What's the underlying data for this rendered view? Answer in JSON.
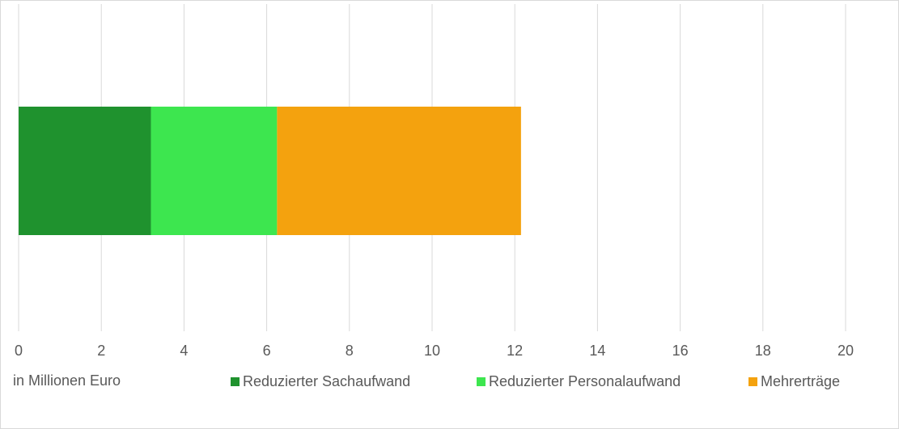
{
  "chart_data": {
    "type": "bar",
    "orientation": "horizontal",
    "stacked": true,
    "xlabel": "in Millionen Euro",
    "categories": [
      null
    ],
    "series": [
      {
        "name": "Reduzierter Sachaufwand",
        "color": "#1f922e",
        "values": [
          3.2
        ]
      },
      {
        "name": "Reduzierter Personalaufwand",
        "color": "#3de64f",
        "values": [
          3.05
        ]
      },
      {
        "name": "Mehrerträge",
        "color": "#f4a20e",
        "values": [
          5.9
        ]
      }
    ],
    "xlim": [
      0,
      20
    ],
    "xticks": [
      0,
      2,
      4,
      6,
      8,
      10,
      12,
      14,
      16,
      18,
      20
    ],
    "grid": true
  }
}
